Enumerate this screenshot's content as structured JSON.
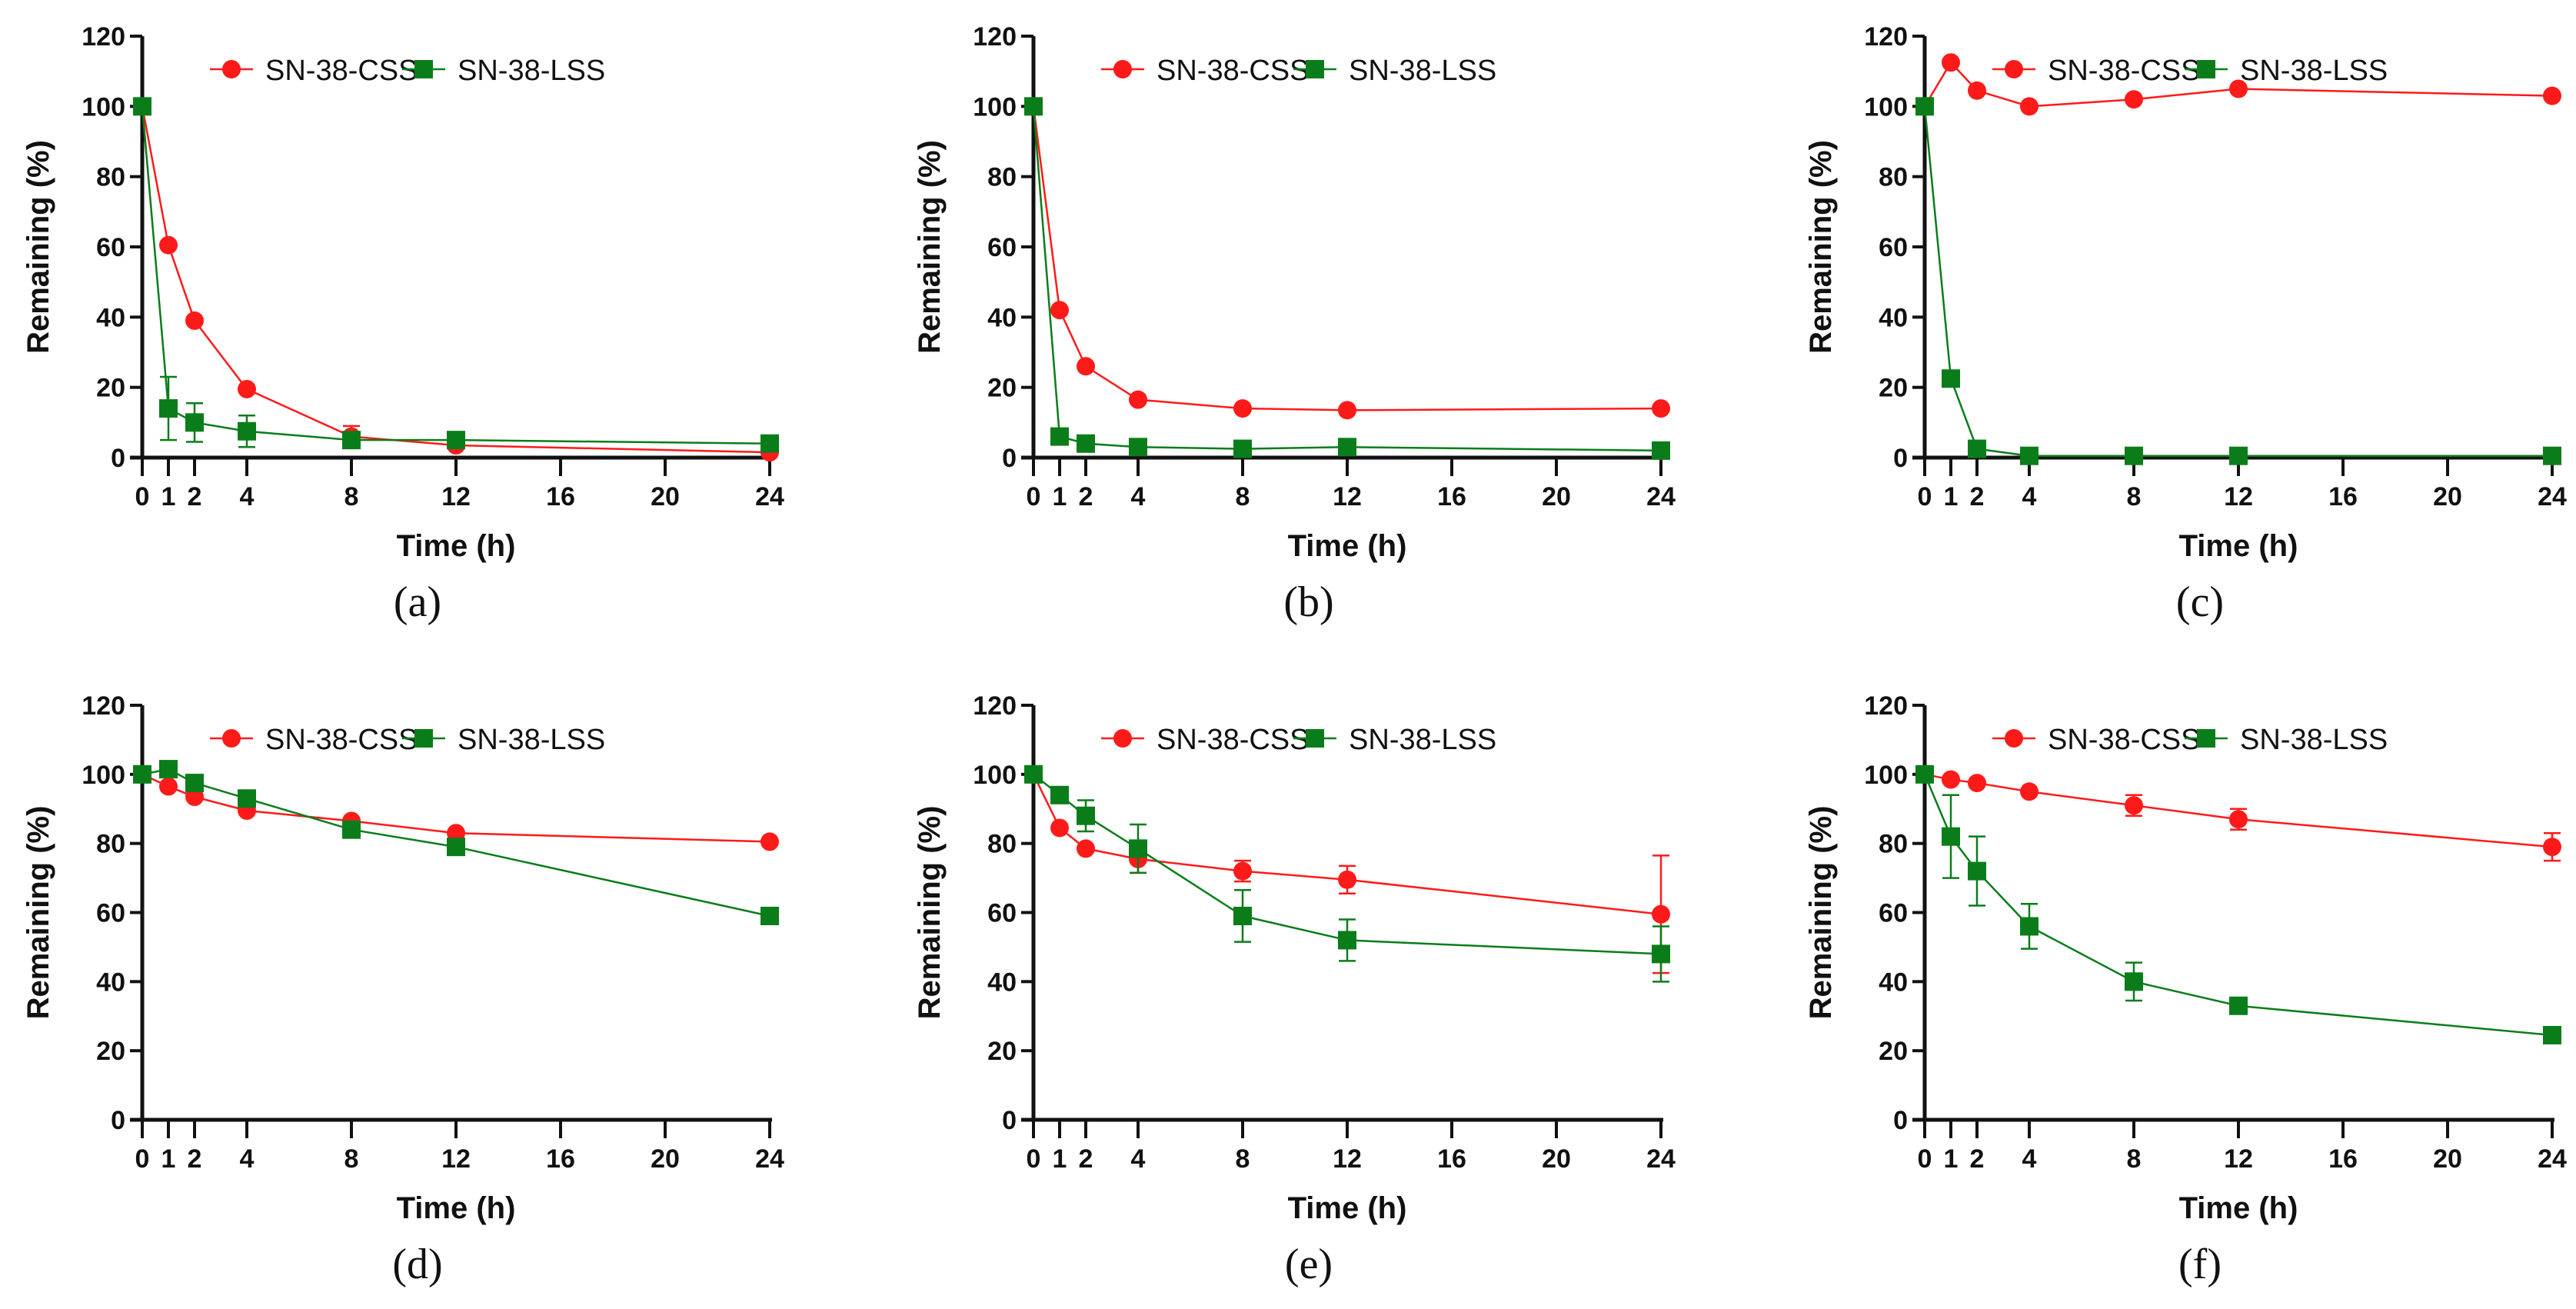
{
  "colors": {
    "css": "#ff1a1a",
    "lss": "#0a7d1a",
    "axis": "#111111"
  },
  "chart_data": [
    {
      "type": "line",
      "panel_label": "(a)",
      "xlabel": "Time (h)",
      "ylabel": "Remaining (%)",
      "xlim": [
        0,
        24
      ],
      "ylim": [
        0,
        120
      ],
      "xticks": [
        0,
        1,
        2,
        4,
        8,
        12,
        16,
        20,
        24
      ],
      "yticks": [
        0,
        20,
        40,
        60,
        80,
        100,
        120
      ],
      "legend": "top",
      "x": [
        0,
        1,
        2,
        4,
        8,
        12,
        24
      ],
      "series": [
        {
          "name": "SN-38-CSS",
          "values": [
            100,
            60.5,
            39,
            19.5,
            6,
            3.5,
            1.5
          ],
          "err": [
            0,
            0,
            0,
            0,
            3,
            0,
            0
          ]
        },
        {
          "name": "SN-38-LSS",
          "values": [
            100,
            14,
            10,
            7.5,
            5,
            5,
            4
          ],
          "err": [
            0,
            9,
            5.5,
            4.5,
            2,
            0,
            0
          ]
        }
      ]
    },
    {
      "type": "line",
      "panel_label": "(b)",
      "xlabel": "Time (h)",
      "ylabel": "Remaining (%)",
      "xlim": [
        0,
        24
      ],
      "ylim": [
        0,
        120
      ],
      "xticks": [
        0,
        1,
        2,
        4,
        8,
        12,
        16,
        20,
        24
      ],
      "yticks": [
        0,
        20,
        40,
        60,
        80,
        100,
        120
      ],
      "legend": "top",
      "x": [
        0,
        1,
        2,
        4,
        8,
        12,
        24
      ],
      "series": [
        {
          "name": "SN-38-CSS",
          "values": [
            100,
            42,
            26,
            16.5,
            14,
            13.5,
            14
          ],
          "err": [
            0,
            0,
            0,
            0,
            0,
            0,
            0
          ]
        },
        {
          "name": "SN-38-LSS",
          "values": [
            100,
            6,
            4,
            3,
            2.5,
            3,
            2
          ],
          "err": [
            0,
            0,
            0,
            0,
            0,
            0,
            0
          ]
        }
      ]
    },
    {
      "type": "line",
      "panel_label": "(c)",
      "xlabel": "Time (h)",
      "ylabel": "Remaining (%)",
      "xlim": [
        0,
        24
      ],
      "ylim": [
        0,
        120
      ],
      "xticks": [
        0,
        1,
        2,
        4,
        8,
        12,
        16,
        20,
        24
      ],
      "yticks": [
        0,
        20,
        40,
        60,
        80,
        100,
        120
      ],
      "legend": "top",
      "x": [
        0,
        1,
        2,
        4,
        8,
        12,
        24
      ],
      "series": [
        {
          "name": "SN-38-CSS",
          "values": [
            100,
            112.5,
            104.5,
            100,
            102,
            105,
            103
          ],
          "err": [
            0,
            0,
            0,
            0,
            0,
            0,
            0
          ]
        },
        {
          "name": "SN-38-LSS",
          "values": [
            100,
            22.5,
            2.5,
            0.5,
            0.5,
            0.5,
            0.5
          ],
          "err": [
            0,
            0,
            0,
            0,
            0,
            0,
            0
          ]
        }
      ]
    },
    {
      "type": "line",
      "panel_label": "(d)",
      "xlabel": "Time (h)",
      "ylabel": "Remaining (%)",
      "xlim": [
        0,
        24
      ],
      "ylim": [
        0,
        120
      ],
      "xticks": [
        0,
        1,
        2,
        4,
        8,
        12,
        16,
        20,
        24
      ],
      "yticks": [
        0,
        20,
        40,
        60,
        80,
        100,
        120
      ],
      "legend": "top",
      "x": [
        0,
        1,
        2,
        4,
        8,
        12,
        24
      ],
      "series": [
        {
          "name": "SN-38-CSS",
          "values": [
            100,
            96.5,
            93.5,
            89.5,
            86.5,
            83,
            80.5
          ],
          "err": [
            0,
            0,
            0,
            0,
            0,
            0,
            0
          ]
        },
        {
          "name": "SN-38-LSS",
          "values": [
            100,
            101.5,
            97.5,
            93,
            84,
            79,
            59
          ],
          "err": [
            0,
            0,
            0,
            0,
            0,
            0,
            0
          ]
        }
      ]
    },
    {
      "type": "line",
      "panel_label": "(e)",
      "xlabel": "Time (h)",
      "ylabel": "Remaining (%)",
      "xlim": [
        0,
        24
      ],
      "ylim": [
        0,
        120
      ],
      "xticks": [
        0,
        1,
        2,
        4,
        8,
        12,
        16,
        20,
        24
      ],
      "yticks": [
        0,
        20,
        40,
        60,
        80,
        100,
        120
      ],
      "legend": "top",
      "x": [
        0,
        1,
        2,
        4,
        8,
        12,
        24
      ],
      "series": [
        {
          "name": "SN-38-CSS",
          "values": [
            100,
            84.5,
            78.5,
            75.5,
            72,
            69.5,
            59.5
          ],
          "err": [
            0,
            0,
            0,
            4,
            3,
            4,
            17
          ]
        },
        {
          "name": "SN-38-LSS",
          "values": [
            100,
            94,
            88,
            78.5,
            59,
            52,
            48
          ],
          "err": [
            0,
            0,
            4.5,
            7,
            7.5,
            6,
            8
          ]
        }
      ]
    },
    {
      "type": "line",
      "panel_label": "(f)",
      "xlabel": "Time (h)",
      "ylabel": "Remaining (%)",
      "xlim": [
        0,
        24
      ],
      "ylim": [
        0,
        120
      ],
      "xticks": [
        0,
        1,
        2,
        4,
        8,
        12,
        16,
        20,
        24
      ],
      "yticks": [
        0,
        20,
        40,
        60,
        80,
        100,
        120
      ],
      "legend": "top",
      "x": [
        0,
        1,
        2,
        4,
        8,
        12,
        24
      ],
      "series": [
        {
          "name": "SN-38-CSS",
          "values": [
            100,
            98.5,
            97.5,
            95,
            91,
            87,
            79
          ],
          "err": [
            0,
            0,
            0,
            0,
            3,
            3,
            4
          ]
        },
        {
          "name": "SN-38-LSS",
          "values": [
            100,
            82,
            72,
            56,
            40,
            33,
            24.5
          ],
          "err": [
            0,
            12,
            10,
            6.5,
            5.5,
            0,
            0
          ]
        }
      ]
    }
  ]
}
